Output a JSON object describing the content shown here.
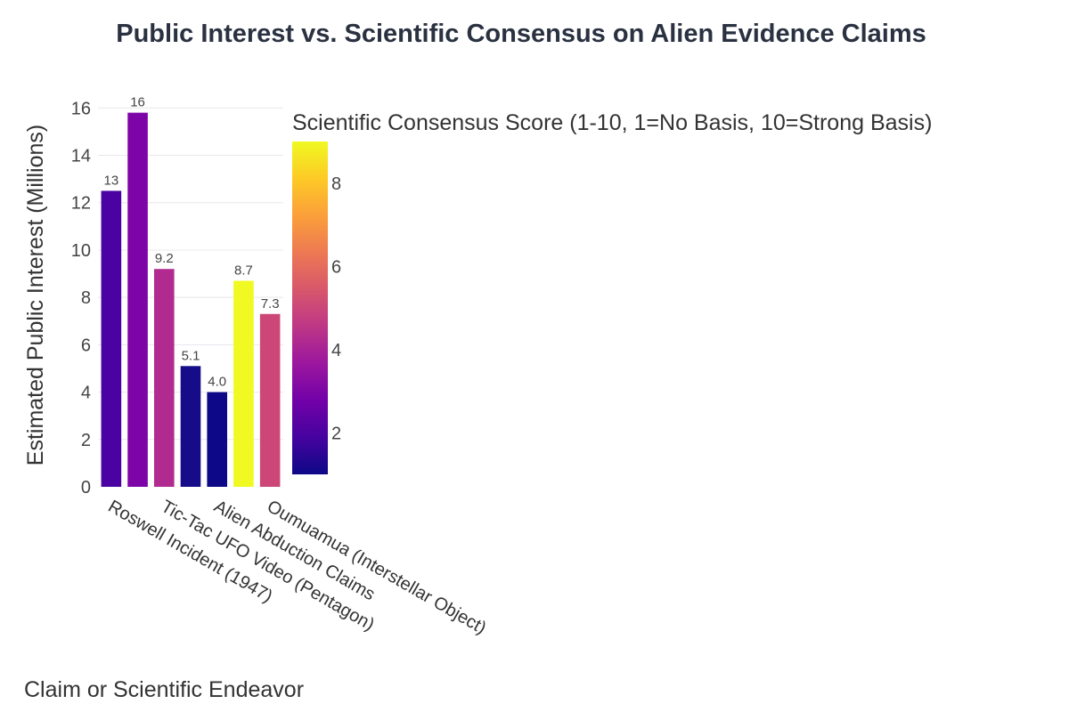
{
  "chart_data": {
    "type": "bar",
    "title": "Public Interest vs. Scientific Consensus on Alien Evidence Claims",
    "xlabel": "Claim or Scientific Endeavor",
    "ylabel": "Estimated Public Interest (Millions)",
    "ylim": [
      0,
      16.5
    ],
    "y_ticks": [
      0,
      2,
      4,
      6,
      8,
      10,
      12,
      14,
      16
    ],
    "grid": true,
    "categories": [
      "Roswell Incident (1947)",
      "",
      "Tic-Tac UFO Video (Pentagon)",
      "",
      "Alien Abduction Claims",
      "",
      "Oumuamua (Interstellar Object)"
    ],
    "values": [
      12.5,
      15.8,
      9.2,
      5.1,
      4.0,
      8.7,
      7.3
    ],
    "data_labels": [
      "13",
      "16",
      "9.2",
      "5.1",
      "4.0",
      "8.7",
      "7.3"
    ],
    "bar_colors": [
      "#4a03a2",
      "#7d05a8",
      "#b12a90",
      "#160b89",
      "#0d0887",
      "#f0f921",
      "#cc4778"
    ],
    "colorbar": {
      "title": "Scientific Consensus Score (1-10, 1=No Basis, 10=Strong Basis)",
      "range": [
        1,
        9
      ],
      "ticks": [
        2,
        4,
        6,
        8
      ],
      "colorscale": [
        "#0d0887",
        "#46039f",
        "#7201a8",
        "#9c179e",
        "#bd3786",
        "#d8576b",
        "#ed7953",
        "#fb9f3a",
        "#fdca26",
        "#f0f921"
      ]
    }
  }
}
